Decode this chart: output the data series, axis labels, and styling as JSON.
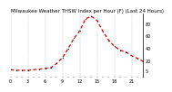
{
  "title": "Milwaukee Weather THSW Index per Hour (F) (Last 24 Hours)",
  "background_color": "#ffffff",
  "line_color": "#dd0000",
  "marker_color": "#000000",
  "grid_color": "#999999",
  "ylim": [
    -5,
    95
  ],
  "ytick_vals": [
    5,
    20,
    40,
    60,
    80
  ],
  "ytick_labels": [
    "5",
    "20",
    "40",
    "60",
    "80"
  ],
  "hours": [
    0,
    1,
    2,
    3,
    4,
    5,
    6,
    7,
    8,
    9,
    10,
    11,
    12,
    13,
    14,
    15,
    16,
    17,
    18,
    19,
    20,
    21,
    22,
    23
  ],
  "values": [
    6,
    5,
    5,
    5,
    6,
    7,
    8,
    9,
    16,
    25,
    40,
    56,
    68,
    87,
    91,
    84,
    67,
    53,
    43,
    37,
    34,
    28,
    24,
    19
  ],
  "vgrid_positions": [
    0,
    3,
    6,
    9,
    12,
    15,
    18,
    21
  ],
  "title_fontsize": 4.0,
  "tick_fontsize": 3.5,
  "line_width": 0.9,
  "marker_size": 1.8
}
